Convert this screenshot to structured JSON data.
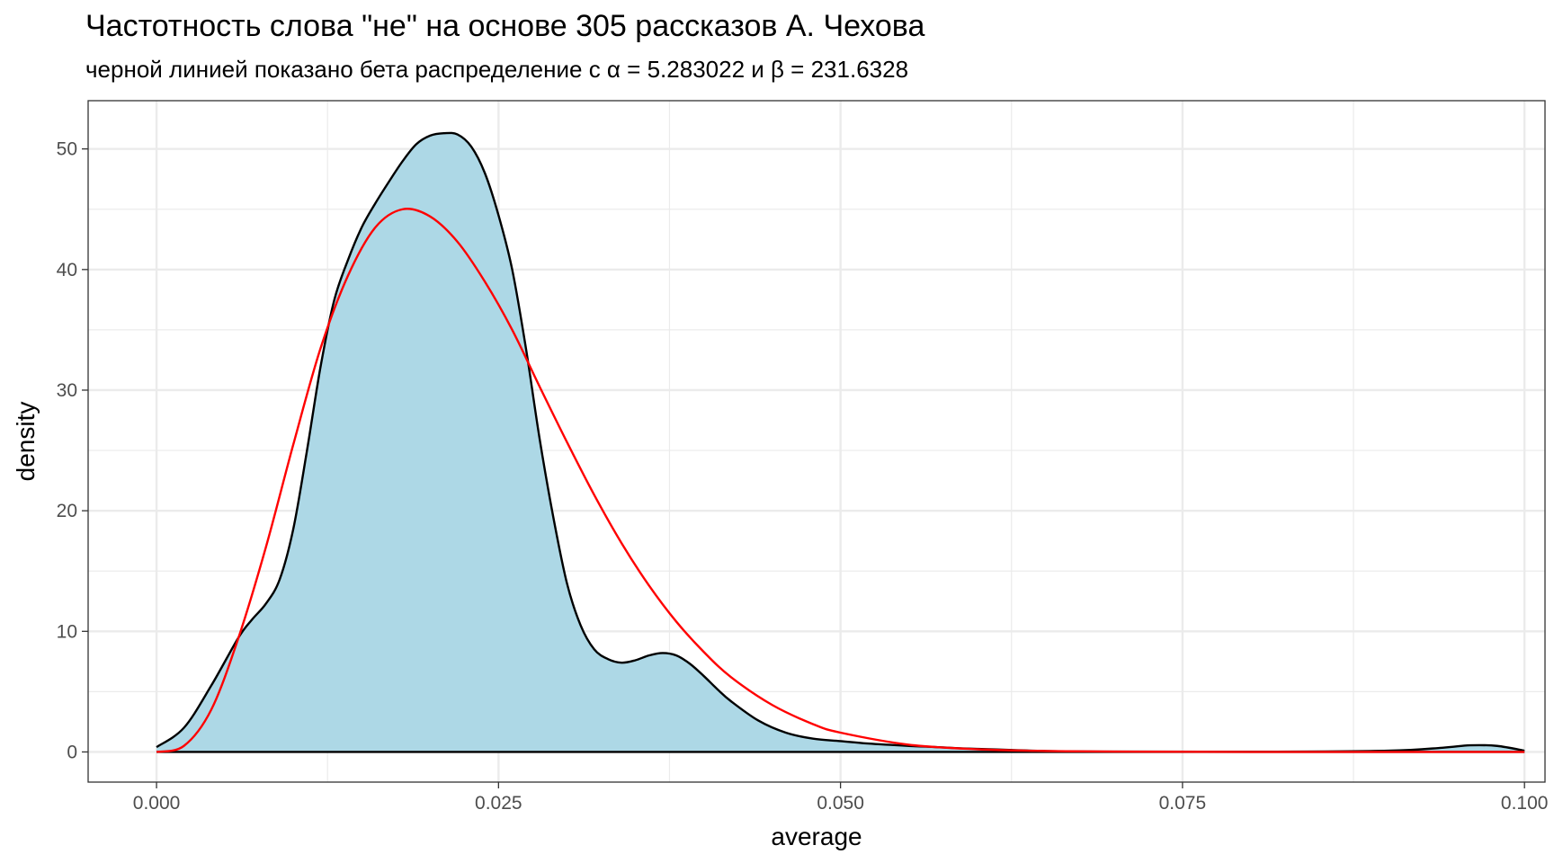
{
  "chart_data": {
    "type": "area",
    "title": "Частотность слова \"не\" на основе 305 рассказов А. Чехова",
    "subtitle": "черной линией показано бета распределение с α = 5.283022 и β = 231.6328",
    "xlabel": "average",
    "ylabel": "density",
    "xlim": [
      -0.005,
      0.1015
    ],
    "ylim": [
      -2.5,
      54
    ],
    "x_ticks": [
      0.0,
      0.025,
      0.05,
      0.075,
      0.1
    ],
    "x_tick_labels": [
      "0.000",
      "0.025",
      "0.050",
      "0.075",
      "0.100"
    ],
    "y_ticks": [
      0,
      10,
      20,
      30,
      40,
      50
    ],
    "y_tick_labels": [
      "0",
      "10",
      "20",
      "30",
      "40",
      "50"
    ],
    "grid": true,
    "theme": "black-white",
    "series": [
      {
        "kind": "density-area",
        "fill": "#add8e6",
        "stroke": "#000000",
        "x": [
          0.0,
          0.002,
          0.004,
          0.006,
          0.007,
          0.008,
          0.009,
          0.01,
          0.011,
          0.012,
          0.013,
          0.014,
          0.015,
          0.016,
          0.017,
          0.018,
          0.019,
          0.02,
          0.021,
          0.022,
          0.023,
          0.024,
          0.025,
          0.026,
          0.027,
          0.028,
          0.029,
          0.03,
          0.031,
          0.032,
          0.033,
          0.034,
          0.035,
          0.036,
          0.037,
          0.038,
          0.039,
          0.04,
          0.041,
          0.042,
          0.044,
          0.046,
          0.048,
          0.05,
          0.052,
          0.055,
          0.057,
          0.06,
          0.065,
          0.07,
          0.08,
          0.09,
          0.094,
          0.096,
          0.098,
          0.1
        ],
        "y": [
          0.4,
          2.0,
          5.5,
          9.5,
          11.0,
          12.3,
          14.3,
          18.5,
          25.0,
          32.0,
          37.5,
          40.8,
          43.5,
          45.5,
          47.3,
          49.0,
          50.4,
          51.1,
          51.3,
          51.2,
          50.2,
          48.0,
          44.5,
          40.0,
          33.5,
          26.0,
          19.5,
          14.0,
          10.5,
          8.5,
          7.7,
          7.4,
          7.6,
          8.0,
          8.2,
          8.0,
          7.3,
          6.3,
          5.2,
          4.2,
          2.6,
          1.6,
          1.1,
          0.9,
          0.7,
          0.5,
          0.4,
          0.25,
          0.08,
          0.03,
          0.02,
          0.1,
          0.35,
          0.55,
          0.5,
          0.1
        ]
      },
      {
        "kind": "beta-line",
        "color": "#ff0000",
        "x": [
          0.0,
          0.002,
          0.004,
          0.006,
          0.008,
          0.01,
          0.012,
          0.014,
          0.016,
          0.018,
          0.02,
          0.022,
          0.024,
          0.026,
          0.028,
          0.03,
          0.032,
          0.034,
          0.036,
          0.038,
          0.04,
          0.042,
          0.045,
          0.048,
          0.05,
          0.055,
          0.06,
          0.065,
          0.07,
          0.08,
          0.09,
          0.1
        ],
        "y": [
          0.0,
          0.5,
          3.5,
          9.5,
          17.0,
          25.5,
          33.5,
          39.5,
          43.5,
          45.0,
          44.4,
          42.3,
          39.0,
          35.0,
          30.3,
          25.7,
          21.3,
          17.3,
          13.8,
          10.8,
          8.3,
          6.2,
          3.9,
          2.3,
          1.6,
          0.6,
          0.22,
          0.08,
          0.03,
          0.005,
          0.001,
          0.0
        ]
      }
    ]
  }
}
